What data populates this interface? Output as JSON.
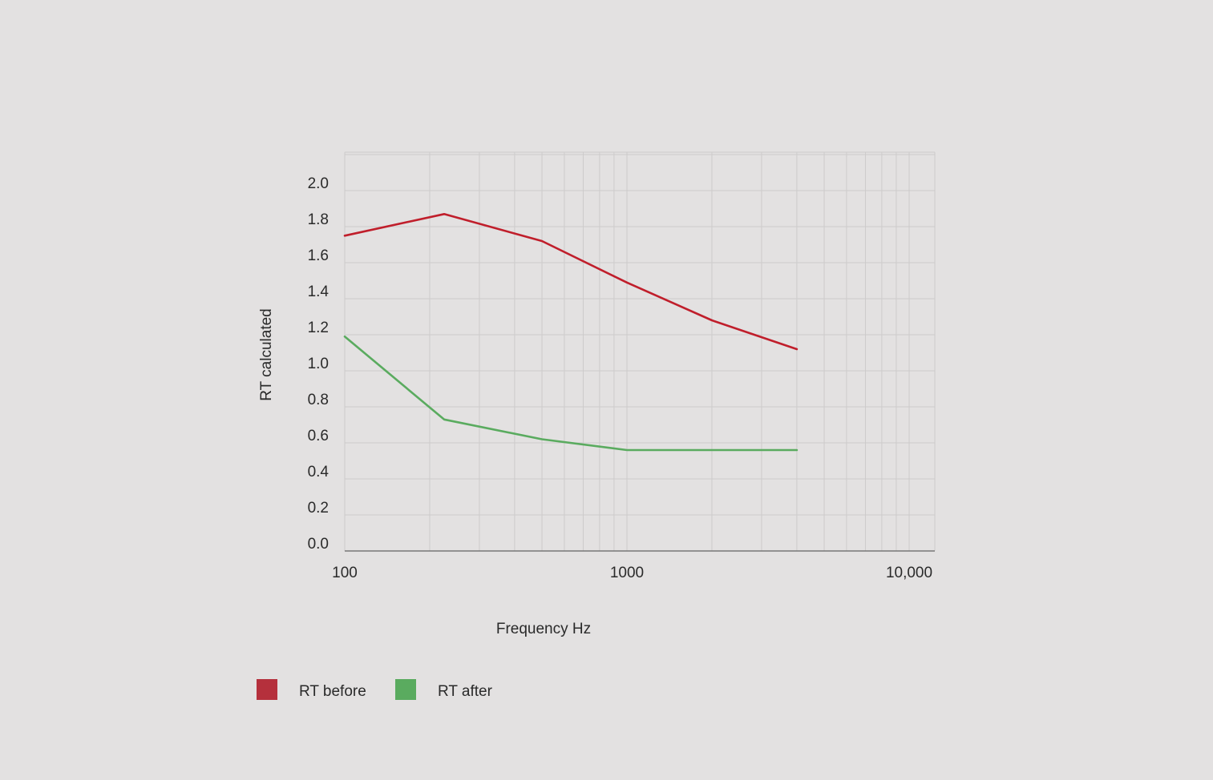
{
  "chart_data": {
    "type": "line",
    "title": "",
    "xlabel": "Frequency Hz",
    "ylabel": "RT calculated",
    "x_scale": "log",
    "xlim": [
      100,
      10000
    ],
    "ylim": [
      0,
      2.2
    ],
    "x_ticks": [
      100,
      1000,
      10000
    ],
    "x_tick_labels": [
      "100",
      "1000",
      "10,000"
    ],
    "y_ticks": [
      0,
      0.2,
      0.4,
      0.6,
      0.8,
      1.0,
      1.2,
      1.4,
      1.6,
      1.8,
      2.0
    ],
    "y_tick_labels": [
      "0.0",
      "0.2",
      "0.4",
      "0.6",
      "0.8",
      "1.0",
      "1.2",
      "1.4",
      "1.6",
      "1.8",
      "2.0"
    ],
    "grid": true,
    "legend_position": "bottom-left",
    "x": [
      100,
      225,
      500,
      1000,
      2000,
      4000
    ],
    "series": [
      {
        "name": "RT before",
        "color": "#c01e2b",
        "values": [
          1.75,
          1.87,
          1.72,
          1.49,
          1.28,
          1.12
        ]
      },
      {
        "name": "RT after",
        "color": "#5aab5f",
        "values": [
          1.19,
          0.73,
          0.62,
          0.56,
          0.56,
          0.56
        ]
      }
    ],
    "legend": [
      {
        "label": "RT before",
        "swatch_color": "#b5303c"
      },
      {
        "label": "RT after",
        "swatch_color": "#5aab5f"
      }
    ]
  }
}
